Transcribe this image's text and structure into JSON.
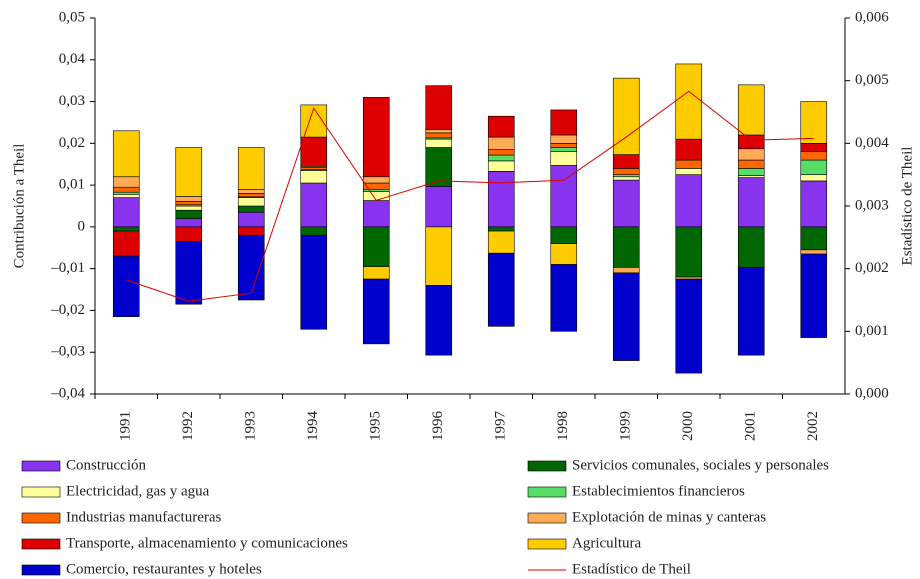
{
  "chart_data": {
    "type": "bar",
    "stacked": true,
    "y_label": "Contribución a Theil",
    "y2_label": "Estadístico de Theil",
    "categories": [
      "1991",
      "1992",
      "1993",
      "1994",
      "1995",
      "1996",
      "1997",
      "1998",
      "1999",
      "2000",
      "2001",
      "2002"
    ],
    "series": [
      {
        "name": "Construcción",
        "color": "#8833ee",
        "values": [
          0.007,
          0.002,
          0.0035,
          0.0105,
          0.0063,
          0.0097,
          0.0133,
          0.0147,
          0.0112,
          0.0125,
          0.0118,
          0.011
        ]
      },
      {
        "name": "Electricidad, gas y agua",
        "color": "#ffff99",
        "values": [
          0.0008,
          0.001,
          0.002,
          0.003,
          0.0022,
          0.002,
          0.0025,
          0.0033,
          0.0008,
          0.0015,
          0.0005,
          0.0015
        ]
      },
      {
        "name": "Industrias manufactureras",
        "color": "#ff6600",
        "values": [
          0.0012,
          0.0008,
          0.0008,
          0.0005,
          0.0015,
          0.0012,
          0.0013,
          0.001,
          0.0015,
          0.002,
          0.002,
          0.002
        ]
      },
      {
        "name": "Transporte, almacenamiento y comunicaciones",
        "color": "#dd0000",
        "values": [
          -0.006,
          -0.0035,
          -0.002,
          0.007,
          0.019,
          0.0105,
          0.005,
          0.006,
          0.0033,
          0.005,
          0.0033,
          0.002
        ]
      },
      {
        "name": " Comercio, restaurantes y hoteles",
        "color": "#0000cc",
        "values": [
          -0.0145,
          -0.015,
          -0.0155,
          -0.0225,
          -0.0155,
          -0.0167,
          -0.0175,
          -0.016,
          -0.021,
          -0.0225,
          -0.021,
          -0.02
        ]
      },
      {
        "name": "Servicios comunales, sociales y personales",
        "color": "#006600",
        "values": [
          -0.001,
          0.002,
          0.0015,
          -0.002,
          -0.0095,
          0.0093,
          -0.001,
          -0.004,
          -0.0097,
          -0.012,
          -0.0097,
          -0.0055
        ]
      },
      {
        "name": "Establecimientos financieros",
        "color": "#55dd66",
        "values": [
          0.0005,
          0.0003,
          0.0002,
          0.0002,
          0.0005,
          0.0003,
          0.0014,
          0.001,
          0.0005,
          0,
          0.0017,
          0.0035
        ]
      },
      {
        "name": "Explotación de minas y canteras",
        "color": "#ffaa55",
        "values": [
          0.0025,
          0.0012,
          0.001,
          0.0003,
          0.0015,
          0.0008,
          0.003,
          0.002,
          -0.0013,
          -0.0005,
          0.0027,
          -0.001
        ]
      },
      {
        "name": "Agricultura",
        "color": "#ffcc00",
        "values": [
          0.011,
          0.0117,
          0.01,
          0.0077,
          -0.003,
          -0.014,
          -0.0053,
          -0.005,
          0.0183,
          0.018,
          0.012,
          0.01
        ]
      },
      {
        "name": "Estadístico de Theil",
        "color": "#dd0000",
        "axis": "y2",
        "values": [
          0.00182,
          0.00148,
          0.00161,
          0.00456,
          0.00309,
          0.0034,
          0.00337,
          0.00341,
          0.0041,
          0.00483,
          0.00405,
          0.00408
        ]
      }
    ],
    "ylim": [
      -0.04,
      0.05
    ],
    "yticks": [
      {
        "value": -0.04,
        "label": "–0,04"
      },
      {
        "value": -0.03,
        "label": "–0,03"
      },
      {
        "value": -0.02,
        "label": "–0,02"
      },
      {
        "value": -0.01,
        "label": "–0,01"
      },
      0,
      {
        "value": 0.01,
        "label": "0,01"
      },
      {
        "value": 0.02,
        "label": "0,02"
      },
      {
        "value": 0.03,
        "label": "0,03"
      },
      {
        "value": 0.04,
        "label": "0,04"
      },
      {
        "value": 0.05,
        "label": "0,05"
      }
    ],
    "y2lim": [
      0,
      0.006
    ],
    "y2ticks": [
      {
        "value": 0,
        "label": "0,000"
      },
      {
        "value": 0.001,
        "label": "0,001"
      },
      {
        "value": 0.002,
        "label": "0,002"
      },
      {
        "value": 0.003,
        "label": "0,003"
      },
      {
        "value": 0.004,
        "label": "0,004"
      },
      {
        "value": 0.005,
        "label": "0,005"
      },
      {
        "value": 0.006,
        "label": "0,006"
      }
    ]
  }
}
